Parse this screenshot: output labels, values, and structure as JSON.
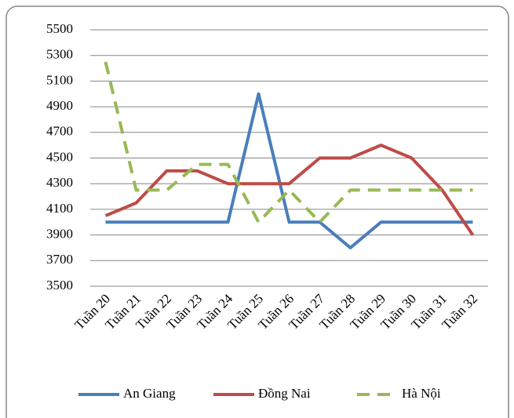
{
  "chart_data": {
    "type": "line",
    "categories": [
      "Tuần 20",
      "Tuần 21",
      "Tuần 22",
      "Tuần 23",
      "Tuần 24",
      "Tuần 25",
      "Tuần 26",
      "Tuần 27",
      "Tuần 28",
      "Tuần 29",
      "Tuần 30",
      "Tuần 31",
      "Tuần 32"
    ],
    "series": [
      {
        "name": "An Giang",
        "color": "#4a7ebb",
        "style": "solid",
        "values": [
          4000,
          4000,
          4000,
          4000,
          4000,
          5000,
          4000,
          4000,
          3800,
          4000,
          4000,
          4000,
          4000
        ]
      },
      {
        "name": "Đồng Nai",
        "color": "#be4b48",
        "style": "solid",
        "values": [
          4050,
          4150,
          4400,
          4400,
          4300,
          4300,
          4300,
          4500,
          4500,
          4600,
          4500,
          4250,
          3900
        ]
      },
      {
        "name": "Hà Nội",
        "color": "#98b954",
        "style": "dashed",
        "values": [
          5250,
          4250,
          4250,
          4450,
          4450,
          4000,
          4250,
          4000,
          4250,
          4250,
          4250,
          4250,
          4250
        ]
      }
    ],
    "ylim": [
      3500,
      5500
    ],
    "yticks": [
      3500,
      3700,
      3900,
      4100,
      4300,
      4500,
      4700,
      4900,
      5100,
      5300,
      5500
    ],
    "grid": true,
    "legend": "bottom"
  }
}
